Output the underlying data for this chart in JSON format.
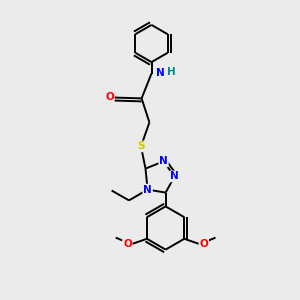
{
  "background_color": "#ebebeb",
  "bond_color": "#000000",
  "atom_colors": {
    "N": "#0000ff",
    "O": "#ff0000",
    "S": "#cccc00",
    "H": "#008b8b",
    "C": "#000000"
  },
  "lw": 1.4,
  "fontsize": 7.5
}
